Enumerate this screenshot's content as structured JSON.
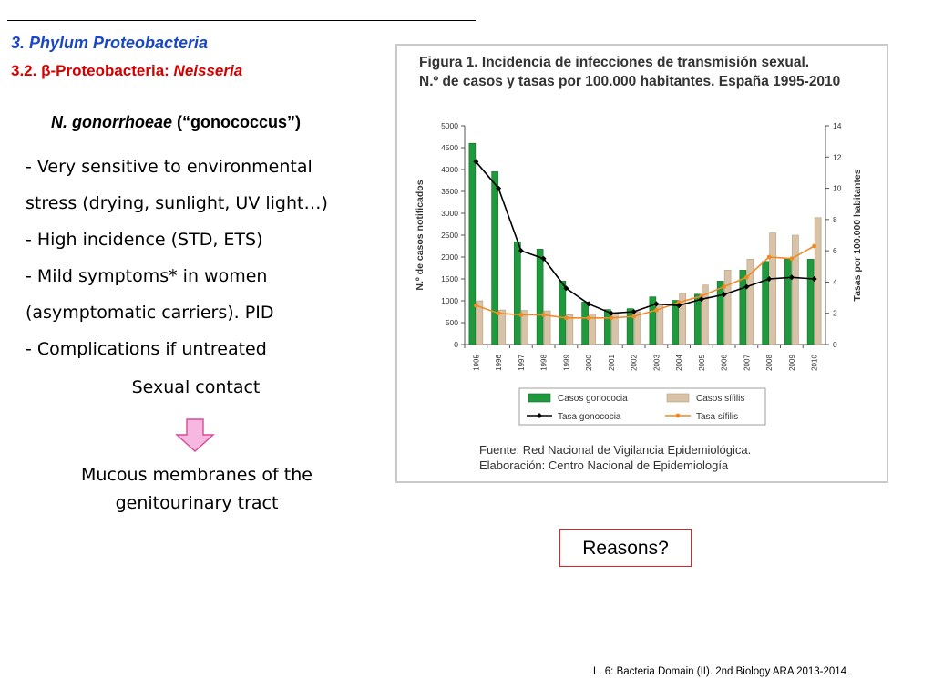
{
  "header": {
    "section": "3. Phylum Proteobacteria",
    "subsection_prefix": "3.2. β-Proteobacteria: ",
    "subsection_genus": "Neisseria"
  },
  "organism": {
    "species": "N. gonorrhoeae",
    "common": " (“gonococcus”)"
  },
  "bullets": [
    "- Very sensitive to environmental",
    "stress (drying, sunlight, UV light…)",
    "- High incidence (STD, ETS)",
    "- Mild symptoms* in women",
    "(asymptomatic carriers). PID",
    "- Complications if untreated"
  ],
  "transmission": {
    "from": "Sexual contact",
    "to": "Mucous membranes of the genitourinary tract"
  },
  "colors": {
    "gonococcus_bar": "#1e9a3c",
    "syphilis_bar": "#d9c3a8",
    "gonococcus_line": "#000000",
    "syphilis_line": "#f08a24",
    "arrow_fill": "#f7b8e0",
    "arrow_stroke": "#d64b9a",
    "reasons_border": "#d9252a",
    "section_blue": "#1a46c8",
    "subsection_red": "#d40000"
  },
  "figure": {
    "title_line1": "Figura 1. Incidencia de infecciones de transmisión sexual.",
    "title_line2": "N.º de casos y tasas por 100.000 habitantes. España 1995-2010",
    "source_line1": "Fuente: Red Nacional de Vigilancia Epidemiológica.",
    "source_line2": "Elaboración: Centro Nacional de Epidemiología"
  },
  "chart_data": {
    "type": "bar",
    "title": "Figura 1. Incidencia de infecciones de transmisión sexual. N.º de casos y tasas por 100.000 habitantes. España 1995-2010",
    "categories": [
      "1995",
      "1996",
      "1997",
      "1998",
      "1999",
      "2000",
      "2001",
      "2002",
      "2003",
      "2004",
      "2005",
      "2006",
      "2007",
      "2008",
      "2009",
      "2010"
    ],
    "ylabel": "N.º de casos notificados",
    "ylabel_right": "Tasas por 100.000 habitantes",
    "ylim": [
      0,
      5000
    ],
    "ylim_right": [
      0,
      14
    ],
    "yticks": [
      0,
      500,
      1000,
      1500,
      2000,
      2500,
      3000,
      3500,
      4000,
      4500,
      5000
    ],
    "yticks_right": [
      0,
      2,
      4,
      6,
      8,
      10,
      12,
      14
    ],
    "series": [
      {
        "name": "Casos gonococia",
        "kind": "bar",
        "axis": "left",
        "values": [
          4600,
          3950,
          2350,
          2180,
          1450,
          970,
          800,
          820,
          1090,
          1010,
          1150,
          1450,
          1700,
          1900,
          1950,
          1950
        ]
      },
      {
        "name": "Casos sífilis",
        "kind": "bar",
        "axis": "left",
        "values": [
          1000,
          790,
          780,
          770,
          680,
          700,
          700,
          750,
          930,
          1170,
          1360,
          1700,
          1950,
          2550,
          2500,
          2900
        ]
      },
      {
        "name": "Tasa gonococia",
        "kind": "line",
        "axis": "right",
        "values": [
          11.7,
          10.0,
          6.0,
          5.5,
          3.6,
          2.6,
          2.0,
          2.1,
          2.6,
          2.5,
          2.9,
          3.2,
          3.7,
          4.2,
          4.3,
          4.2
        ]
      },
      {
        "name": "Tasa sífilis",
        "kind": "line",
        "axis": "right",
        "values": [
          2.5,
          2.0,
          1.9,
          1.9,
          1.7,
          1.7,
          1.7,
          1.8,
          2.2,
          2.7,
          3.1,
          3.7,
          4.3,
          5.6,
          5.5,
          6.3
        ]
      }
    ],
    "legend": [
      "Casos gonococia",
      "Casos sífilis",
      "Tasa gonococia",
      "Tasa sífilis"
    ],
    "legend_position": "bottom",
    "grid": false
  },
  "reasons": "Reasons?",
  "footer": "L. 6: Bacteria Domain (II). 2nd Biology ARA 2013-2014"
}
